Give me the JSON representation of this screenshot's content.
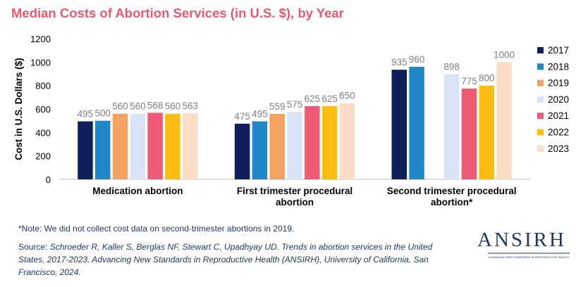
{
  "title": "Median Costs of Abortion Services (in U.S. $), by Year",
  "note": "*Note: We did not collect cost data on second-trimester abortions in 2019.",
  "source": {
    "prefix": "Source: ",
    "citation": "Schroeder R, Kaller S, Berglas NF, Stewart C, Upadhyay UD. Trends in abortion services in the United States, 2017-2023. Advancing New Standards in Reproductive Health (ANSIRH), University of California, San Francisco, 2024."
  },
  "logo": {
    "text": "ANSIRH",
    "tagline": "ADVANCING NEW STANDARDS IN REPRODUCTIVE HEALTH",
    "color": "#1f3864"
  },
  "chart_data": {
    "type": "bar",
    "title": "Median Costs of Abortion Services (in U.S. $), by Year",
    "xlabel": "",
    "ylabel": "Cost in U.S. Dollars ($)",
    "ylim": [
      0,
      1200
    ],
    "yticks": [
      0,
      200,
      400,
      600,
      800,
      1000,
      1200
    ],
    "grid": false,
    "legend": "right",
    "categories": [
      [
        "Medication abortion"
      ],
      [
        "First trimester procedural",
        "abortion"
      ],
      [
        "Second trimester procedural",
        "abortion*"
      ]
    ],
    "series": [
      {
        "name": "2017",
        "color": "#0e1f5b",
        "values": [
          495,
          475,
          935
        ]
      },
      {
        "name": "2018",
        "color": "#1e88c8",
        "values": [
          500,
          495,
          960
        ]
      },
      {
        "name": "2019",
        "color": "#f4a261",
        "values": [
          560,
          559,
          null
        ]
      },
      {
        "name": "2020",
        "color": "#d9e4f7",
        "values": [
          560,
          575,
          898
        ]
      },
      {
        "name": "2021",
        "color": "#ef5a75",
        "values": [
          568,
          625,
          775
        ]
      },
      {
        "name": "2022",
        "color": "#fdbd10",
        "values": [
          560,
          625,
          800
        ]
      },
      {
        "name": "2023",
        "color": "#fbdcc4",
        "values": [
          563,
          650,
          1000
        ]
      }
    ]
  }
}
